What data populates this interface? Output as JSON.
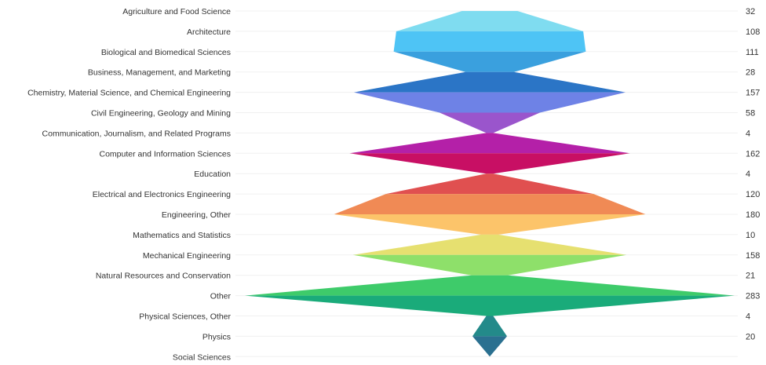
{
  "chart_data": {
    "type": "area",
    "orientation": "horizontal-mirrored",
    "title": "",
    "xlabel": "",
    "ylabel": "",
    "grid": true,
    "legend": "none",
    "categories": [
      "Agriculture and Food Science",
      "Architecture",
      "Biological and Biomedical Sciences",
      "Business, Management, and Marketing",
      "Chemistry, Material Science, and Chemical Engineering",
      "Civil Engineering, Geology and Mining",
      "Communication, Journalism, and Related Programs",
      "Computer and Information Sciences",
      "Education",
      "Electrical and Electronics Engineering",
      "Engineering, Other",
      "Mathematics and Statistics",
      "Mechanical Engineering",
      "Natural Resources and Conservation",
      "Other",
      "Physical Sciences, Other",
      "Physics",
      "Social Sciences"
    ],
    "values": [
      32,
      108,
      111,
      28,
      157,
      58,
      4,
      162,
      4,
      120,
      180,
      10,
      158,
      21,
      283,
      4,
      20,
      null
    ],
    "value_labels": [
      "32",
      "108",
      "111",
      "28",
      "157",
      "58",
      "4",
      "162",
      "4",
      "120",
      "180",
      "10",
      "158",
      "21",
      "283",
      "4",
      "20",
      ""
    ],
    "segment_colors": [
      "#7fdcf0",
      "#4ec4f5",
      "#3aa0de",
      "#2b75c6",
      "#6e82e6",
      "#9a55cc",
      "#b420a8",
      "#c80f64",
      "#e05050",
      "#f08a55",
      "#fcc46a",
      "#e6e070",
      "#8ee06a",
      "#3ecb6a",
      "#1aab7a",
      "#238a8a",
      "#2a7090"
    ],
    "xlim": [
      0,
      283
    ]
  }
}
